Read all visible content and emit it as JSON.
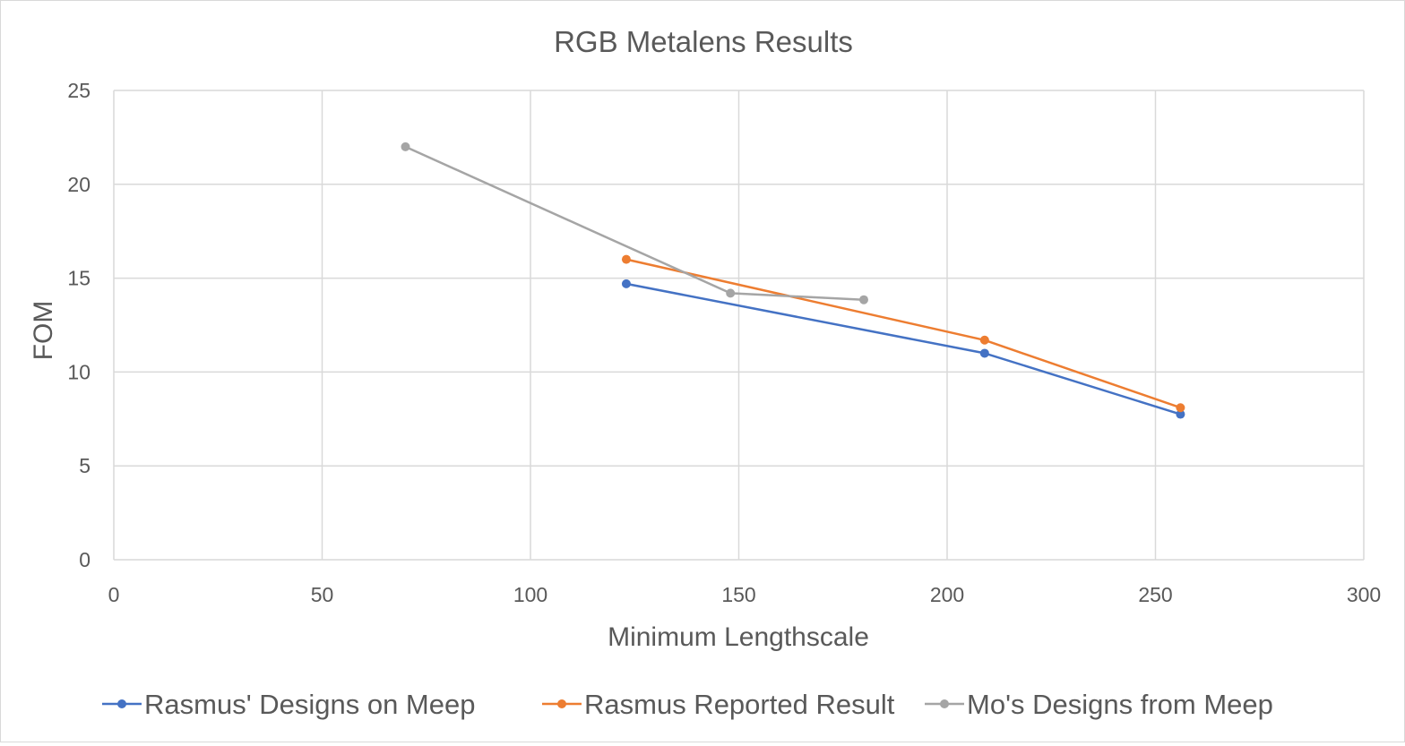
{
  "chart_data": {
    "type": "line",
    "title": "RGB Metalens Results",
    "xlabel": "Minimum Lengthscale",
    "ylabel": "FOM",
    "xlim": [
      0,
      300
    ],
    "ylim": [
      0,
      25
    ],
    "xticks": [
      0,
      50,
      100,
      150,
      200,
      250,
      300
    ],
    "yticks": [
      0,
      5,
      10,
      15,
      20,
      25
    ],
    "grid": true,
    "legend_position": "bottom",
    "series": [
      {
        "name": "Rasmus' Designs on Meep",
        "color": "#4472c4",
        "x": [
          123,
          209,
          256
        ],
        "y": [
          14.7,
          11.0,
          7.75
        ]
      },
      {
        "name": "Rasmus Reported Result",
        "color": "#ed7d31",
        "x": [
          123,
          209,
          256
        ],
        "y": [
          16.0,
          11.7,
          8.1
        ]
      },
      {
        "name": "Mo's Designs from Meep",
        "color": "#a5a5a5",
        "x": [
          70,
          148,
          180
        ],
        "y": [
          22.0,
          14.2,
          13.85
        ]
      }
    ]
  }
}
